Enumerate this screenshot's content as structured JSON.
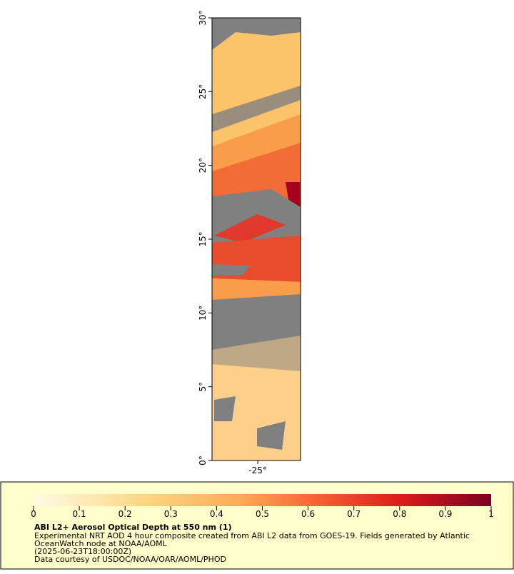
{
  "chart_data": {
    "type": "map",
    "title": "ABI L2+ Aerosol Optical Depth at 550 nm (1)",
    "description": [
      "Experimental NRT AOD 4 hour composite created from ABI L2 data from GOES-19. Fields generated by Atlantic",
      "OceanWatch node at NOAA/AOML",
      "(2025-06-23T18:00:00Z)",
      "Data courtesy of USDOC/NOAA/OAR/AOML/PHOD"
    ],
    "ylim": [
      0,
      30
    ],
    "yticks": [
      {
        "value": 0,
        "label": "0°"
      },
      {
        "value": 5,
        "label": "5°"
      },
      {
        "value": 10,
        "label": "10°"
      },
      {
        "value": 15,
        "label": "15°"
      },
      {
        "value": 20,
        "label": "20°"
      },
      {
        "value": 25,
        "label": "25°"
      },
      {
        "value": 30,
        "label": "30°"
      }
    ],
    "xlim": [
      -28.1,
      -22.1
    ],
    "xticks": [
      {
        "value": -25,
        "label": "-25°"
      }
    ],
    "colorbar": {
      "lim": [
        0,
        1
      ],
      "ticks": [
        0,
        0.1,
        0.2,
        0.3,
        0.4,
        0.5,
        0.6,
        0.7,
        0.8,
        0.9,
        1
      ]
    }
  }
}
